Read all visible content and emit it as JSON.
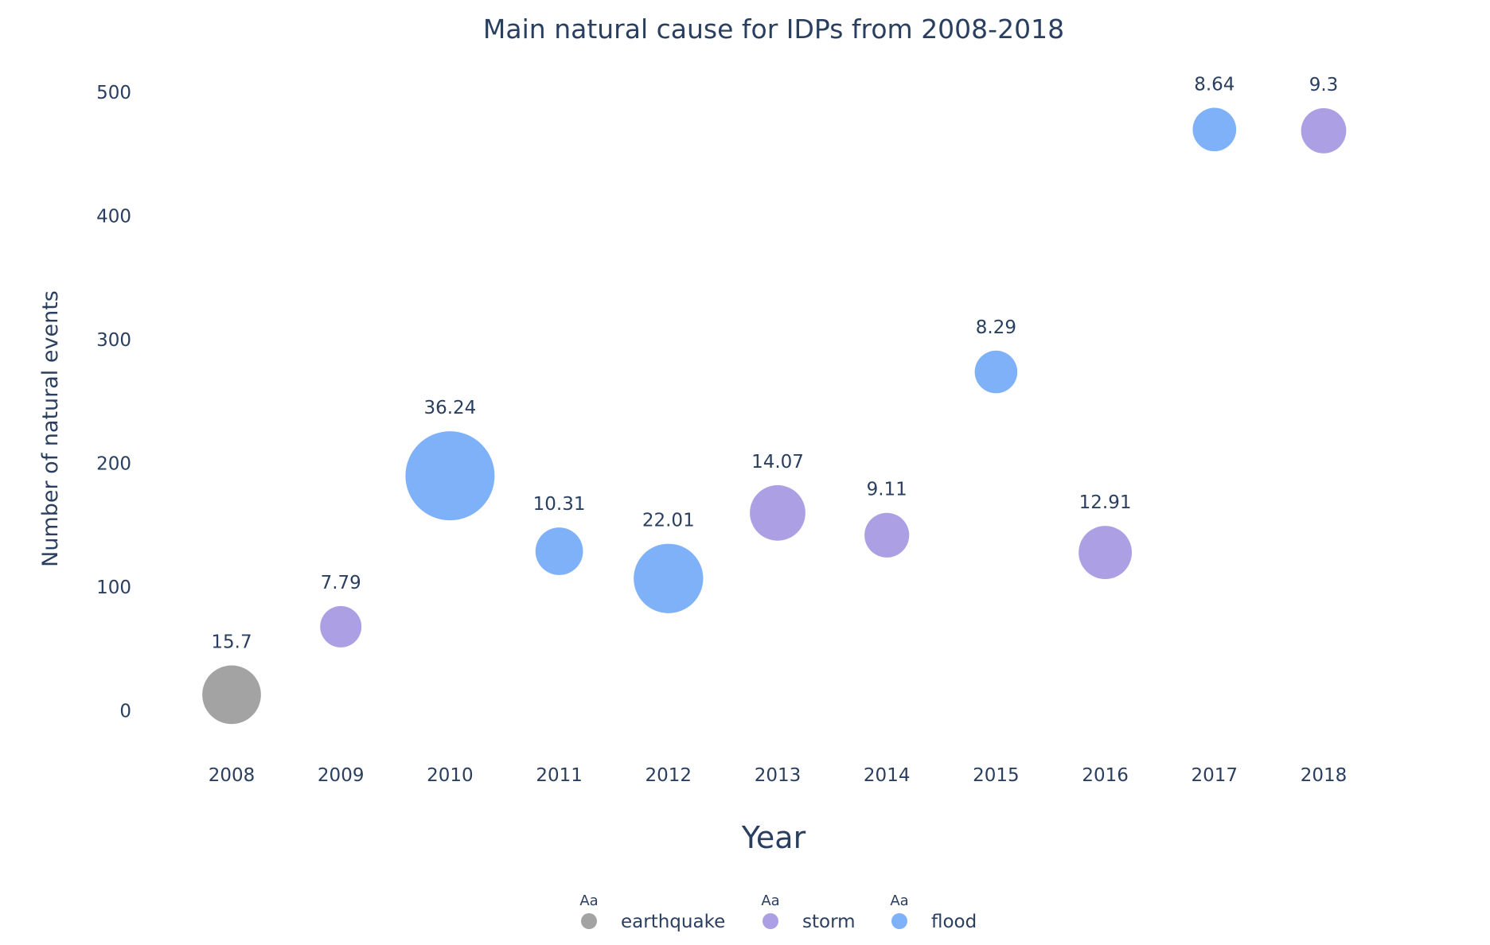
{
  "chart_data": {
    "type": "scatter",
    "title": "Main natural cause for IDPs from 2008-2018",
    "xlabel": "Year",
    "ylabel": "Number of natural events",
    "x_ticks": [
      "2008",
      "2009",
      "2010",
      "2011",
      "2012",
      "2013",
      "2014",
      "2015",
      "2016",
      "2017",
      "2018"
    ],
    "y_ticks": [
      0,
      100,
      200,
      300,
      400,
      500
    ],
    "ylim": [
      -35,
      540
    ],
    "grid": false,
    "legend_position": "bottom-center",
    "legend_symbol_text": "Aa",
    "categories": [
      {
        "name": "earthquake",
        "color": "#a3a3a3"
      },
      {
        "name": "storm",
        "color": "#ad9fe4"
      },
      {
        "name": "flood",
        "color": "#7eb1f8"
      }
    ],
    "points": [
      {
        "x": "2008",
        "y": 13,
        "size": 15.7,
        "category": "earthquake",
        "label": "15.7"
      },
      {
        "x": "2009",
        "y": 68,
        "size": 7.79,
        "category": "storm",
        "label": "7.79"
      },
      {
        "x": "2010",
        "y": 190,
        "size": 36.24,
        "category": "flood",
        "label": "36.24"
      },
      {
        "x": "2011",
        "y": 129,
        "size": 10.31,
        "category": "flood",
        "label": "10.31"
      },
      {
        "x": "2012",
        "y": 107,
        "size": 22.01,
        "category": "flood",
        "label": "22.01"
      },
      {
        "x": "2013",
        "y": 160,
        "size": 14.07,
        "category": "storm",
        "label": "14.07"
      },
      {
        "x": "2014",
        "y": 142,
        "size": 9.11,
        "category": "storm",
        "label": "9.11"
      },
      {
        "x": "2015",
        "y": 274,
        "size": 8.29,
        "category": "flood",
        "label": "8.29"
      },
      {
        "x": "2016",
        "y": 128,
        "size": 12.91,
        "category": "storm",
        "label": "12.91"
      },
      {
        "x": "2017",
        "y": 470,
        "size": 8.64,
        "category": "flood",
        "label": "8.64"
      },
      {
        "x": "2018",
        "y": 469,
        "size": 9.3,
        "category": "storm",
        "label": "9.3"
      }
    ]
  }
}
